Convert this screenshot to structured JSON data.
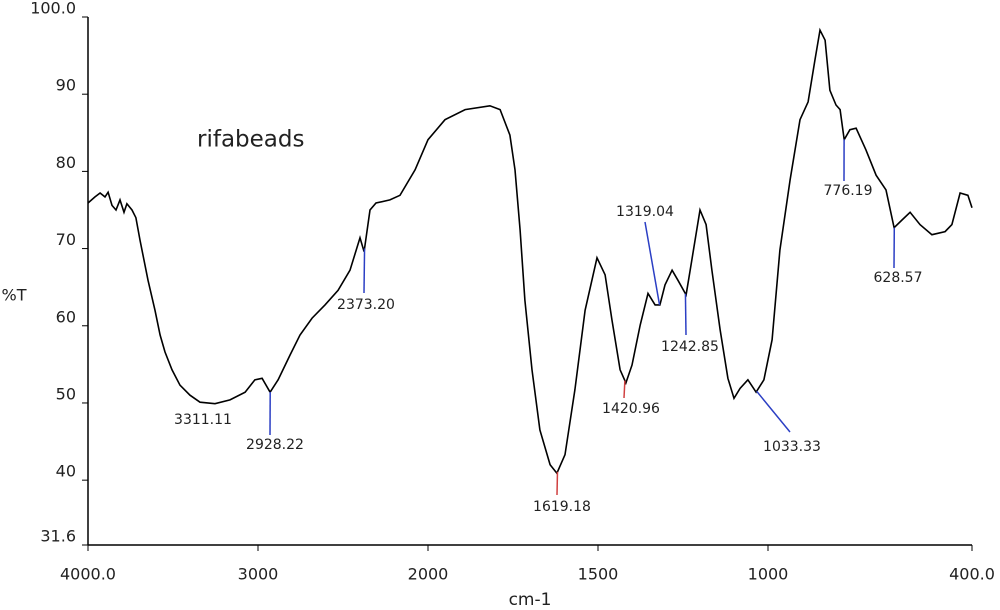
{
  "chart_data": {
    "type": "line",
    "title": "rifabeads",
    "xlabel": "cm-1",
    "ylabel": "%T",
    "color": "#000000",
    "xlim": [
      4000,
      400
    ],
    "ylim": [
      31.6,
      100
    ],
    "xbreak": {
      "at": 2000,
      "stretch": 2
    },
    "xticks": [
      {
        "value": 4000,
        "label": "4000.0"
      },
      3000,
      2000,
      1500,
      1000,
      {
        "value": 400,
        "label": "400.0"
      }
    ],
    "yticks": [
      {
        "value": 100,
        "label": "100.0"
      },
      90,
      80,
      70,
      60,
      50,
      40,
      {
        "value": 31.6,
        "label": "31.6"
      }
    ],
    "x": [
      4000,
      3959,
      3929,
      3900,
      3882,
      3859,
      3835,
      3812,
      3788,
      3771,
      3741,
      3718,
      3694,
      3647,
      3606,
      3576,
      3547,
      3506,
      3459,
      3400,
      3341,
      3253,
      3165,
      3076,
      3018,
      2976,
      2929,
      2882,
      2812,
      2753,
      2682,
      2606,
      2529,
      2459,
      2400,
      2376,
      2341,
      2306,
      2224,
      2165,
      2076,
      2000,
      1950,
      1891,
      1818,
      1788,
      1759,
      1744,
      1729,
      1715,
      1694,
      1671,
      1641,
      1621,
      1597,
      1568,
      1538,
      1503,
      1479,
      1459,
      1435,
      1418,
      1400,
      1376,
      1353,
      1332,
      1318,
      1303,
      1282,
      1265,
      1241,
      1224,
      1200,
      1182,
      1165,
      1141,
      1118,
      1100,
      1082,
      1059,
      1035,
      1012,
      988,
      965,
      935,
      906,
      882,
      862,
      847,
      832,
      818,
      800,
      788,
      776,
      759,
      741,
      712,
      682,
      653,
      629,
      606,
      582,
      553,
      518,
      479,
      459,
      435,
      412,
      400
    ],
    "values": [
      75.9,
      76.7,
      77.2,
      76.7,
      77.3,
      75.6,
      75.0,
      76.3,
      74.7,
      75.8,
      75.0,
      74.0,
      71.1,
      65.9,
      62.0,
      58.8,
      56.6,
      54.3,
      52.3,
      51.0,
      50.1,
      49.9,
      50.4,
      51.4,
      53.0,
      53.2,
      51.4,
      53.0,
      56.2,
      58.8,
      61.0,
      62.7,
      64.6,
      67.2,
      71.4,
      69.6,
      75.0,
      75.9,
      76.3,
      76.9,
      80.2,
      84.1,
      86.7,
      88.0,
      88.5,
      88.0,
      84.7,
      80.2,
      72.4,
      63.3,
      54.3,
      46.5,
      42.0,
      40.9,
      43.3,
      51.7,
      62.0,
      68.8,
      66.6,
      60.8,
      54.3,
      52.6,
      54.9,
      60.1,
      64.2,
      62.7,
      62.7,
      65.3,
      67.2,
      65.9,
      64.0,
      68.5,
      75.0,
      73.1,
      67.2,
      59.5,
      53.2,
      50.6,
      51.9,
      53.0,
      51.4,
      53.0,
      58.2,
      69.8,
      78.9,
      86.7,
      89.0,
      94.4,
      98.3,
      97.0,
      90.5,
      88.6,
      88.0,
      84.1,
      85.4,
      85.6,
      82.8,
      79.5,
      77.6,
      72.7,
      73.7,
      74.7,
      73.1,
      71.8,
      72.2,
      73.1,
      77.2,
      76.9,
      75.3
    ],
    "annotations": [
      {
        "text": "3311.11",
        "x": 3311.11,
        "color": "#2b3fc4"
      },
      {
        "text": "2928.22",
        "x": 2928.22,
        "color": "#2b3fc4"
      },
      {
        "text": "2373.20",
        "x": 2373.2,
        "color": "#2b3fc4"
      },
      {
        "text": "1619.18",
        "x": 1619.18,
        "color": "#d04040"
      },
      {
        "text": "1420.96",
        "x": 1420.96,
        "color": "#d04040"
      },
      {
        "text": "1319.04",
        "x": 1319.04,
        "color": "#2b3fc4"
      },
      {
        "text": "1242.85",
        "x": 1242.85,
        "color": "#2b3fc4"
      },
      {
        "text": "1033.33",
        "x": 1033.33,
        "color": "#2b3fc4"
      },
      {
        "text": "776.19",
        "x": 776.19,
        "color": "#2b3fc4"
      },
      {
        "text": "628.57",
        "x": 628.57,
        "color": "#2b3fc4"
      }
    ]
  }
}
